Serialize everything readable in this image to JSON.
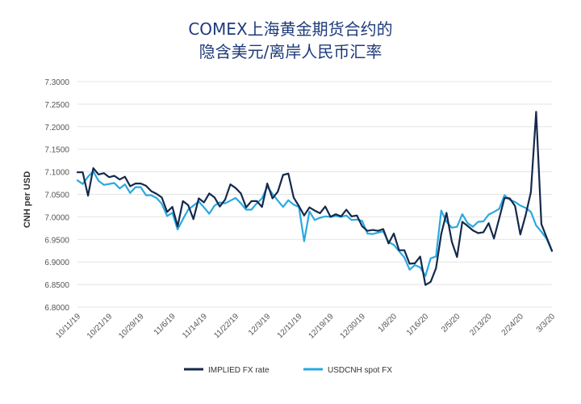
{
  "chart_data": {
    "type": "line",
    "title_lines": [
      "COMEX上海黄金期货合约的",
      "隐含美元/离岸人民币汇率"
    ],
    "ylabel": "CNH per USD",
    "xlabel": "",
    "ylim": [
      6.8,
      7.3
    ],
    "yticks": [
      "6.8000",
      "6.8500",
      "6.9000",
      "6.9500",
      "7.0000",
      "7.0500",
      "7.1000",
      "7.1500",
      "7.2000",
      "7.2500",
      "7.3000"
    ],
    "x_tick_labels": [
      "10/11/19",
      "10/21/19",
      "10/29/19",
      "11/6/19",
      "11/14/19",
      "11/22/19",
      "12/3/19",
      "12/11/19",
      "12/19/19",
      "12/30/19",
      "1/8/20",
      "1/16/20",
      "2/5/20",
      "2/13/20",
      "2/24/20",
      "3/3/20"
    ],
    "x_tick_index": [
      0,
      6,
      12,
      18,
      24,
      30,
      36,
      42,
      48,
      54,
      60,
      66,
      72,
      78,
      84,
      90
    ],
    "grid": "horizontal",
    "legend_position": "bottom",
    "series": [
      {
        "name": "IMPLIED FX rate",
        "color": "#14294b",
        "values": [
          7.099,
          7.099,
          7.047,
          7.108,
          7.094,
          7.097,
          7.088,
          7.091,
          7.083,
          7.089,
          7.068,
          7.074,
          7.074,
          7.069,
          7.057,
          7.051,
          7.043,
          7.011,
          7.022,
          6.979,
          7.035,
          7.026,
          6.995,
          7.041,
          7.032,
          7.052,
          7.043,
          7.023,
          7.038,
          7.072,
          7.064,
          7.052,
          7.021,
          7.035,
          7.035,
          7.022,
          7.074,
          7.041,
          7.056,
          7.093,
          7.096,
          7.043,
          7.024,
          7.003,
          7.021,
          7.014,
          7.008,
          7.023,
          7.0,
          7.006,
          7.001,
          7.016,
          7.001,
          7.003,
          6.979,
          6.969,
          6.971,
          6.969,
          6.973,
          6.941,
          6.963,
          6.926,
          6.926,
          6.896,
          6.897,
          6.912,
          6.849,
          6.856,
          6.886,
          6.962,
          7.009,
          6.945,
          6.911,
          6.989,
          6.98,
          6.97,
          6.964,
          6.966,
          6.986,
          6.952,
          6.997,
          7.042,
          7.041,
          7.024,
          6.961,
          7.003,
          7.055,
          7.233,
          6.984,
          6.954,
          6.925
        ]
      },
      {
        "name": "USDCNH spot FX",
        "color": "#29a9e0",
        "values": [
          7.081,
          7.073,
          7.089,
          7.101,
          7.08,
          7.071,
          7.073,
          7.075,
          7.063,
          7.072,
          7.053,
          7.066,
          7.066,
          7.048,
          7.048,
          7.042,
          7.029,
          7.002,
          7.009,
          6.972,
          6.995,
          7.016,
          7.025,
          7.034,
          7.021,
          7.007,
          7.025,
          7.032,
          7.03,
          7.036,
          7.042,
          7.03,
          7.016,
          7.016,
          7.03,
          7.041,
          7.067,
          7.051,
          7.036,
          7.022,
          7.037,
          7.027,
          7.022,
          6.946,
          7.012,
          6.993,
          6.998,
          7.001,
          7.0,
          7.002,
          7.0,
          7.003,
          6.993,
          6.994,
          6.991,
          6.963,
          6.962,
          6.965,
          6.968,
          6.944,
          6.938,
          6.924,
          6.91,
          6.883,
          6.893,
          6.888,
          6.869,
          6.908,
          6.912,
          7.014,
          6.989,
          6.976,
          6.978,
          7.006,
          6.986,
          6.978,
          6.989,
          6.99,
          7.005,
          7.011,
          7.018,
          7.048,
          7.038,
          7.033,
          7.025,
          7.02,
          7.011,
          6.981,
          6.967,
          6.951,
          6.924
        ]
      }
    ]
  }
}
